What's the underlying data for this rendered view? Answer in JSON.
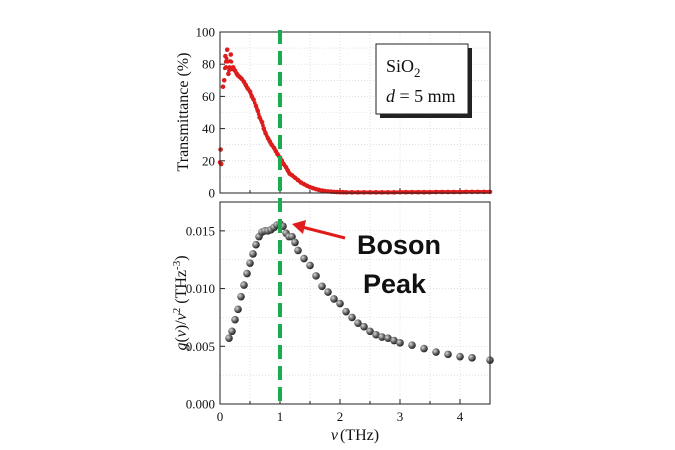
{
  "chart_data": [
    {
      "type": "scatter",
      "panel": "top",
      "ylabel": "Transmittance (%)",
      "ylim": [
        0,
        100
      ],
      "yticks": [
        0,
        20,
        40,
        60,
        80,
        100
      ],
      "xlim": [
        0,
        4.5
      ],
      "grid": true,
      "color": "#dd1c1c",
      "inset_box": {
        "line1_main": "SiO",
        "line1_sub": "2",
        "line2_var": "d",
        "line2_rest": " = 5 mm"
      },
      "series": [
        {
          "x": [
            0.0,
            0.01,
            0.02,
            0.05,
            0.07,
            0.09,
            0.1,
            0.12,
            0.14,
            0.16,
            0.18,
            0.2,
            0.22,
            0.25,
            0.28,
            0.3,
            0.33,
            0.36,
            0.4,
            0.43,
            0.46,
            0.5,
            0.53,
            0.56,
            0.6,
            0.63,
            0.66,
            0.7,
            0.73,
            0.76,
            0.8,
            0.83,
            0.86,
            0.9,
            0.93,
            0.96,
            1.0,
            1.03,
            1.06,
            1.1,
            1.13,
            1.16,
            1.2,
            1.25,
            1.3,
            1.35,
            1.4,
            1.45,
            1.5,
            1.55,
            1.6,
            1.65,
            1.7,
            1.75,
            1.8,
            1.85,
            1.9,
            1.95,
            2.0,
            2.05,
            2.1,
            2.2,
            2.3,
            2.4,
            2.5,
            2.6,
            2.7,
            2.8,
            2.9,
            3.0,
            3.1,
            3.2,
            3.3,
            3.4,
            3.5,
            3.6,
            3.7,
            3.8,
            3.9,
            4.0,
            4.1,
            4.2,
            4.3,
            4.4,
            4.5
          ],
          "y": [
            19,
            27,
            18,
            66,
            70,
            85,
            78,
            89,
            74,
            78,
            86,
            77,
            78,
            76,
            74,
            73,
            72,
            71,
            69,
            67,
            65,
            63,
            60,
            58,
            54,
            51,
            47,
            44,
            40,
            37,
            34,
            32,
            30,
            28,
            26,
            24,
            22,
            20,
            18,
            16,
            14,
            12,
            11,
            9.5,
            8,
            6.5,
            5.5,
            4.5,
            3.6,
            3,
            2.4,
            1.9,
            1.5,
            1.2,
            1,
            0.8,
            0.7,
            0.6,
            0.5,
            0.5,
            0.4,
            0.4,
            0.4,
            0.4,
            0.4,
            0.4,
            0.4,
            0.4,
            0.4,
            0.5,
            0.5,
            0.5,
            0.5,
            0.5,
            0.5,
            0.6,
            0.6,
            0.6,
            0.6,
            0.6,
            0.7,
            0.7,
            0.7,
            0.7,
            0.7
          ]
        }
      ]
    },
    {
      "type": "scatter",
      "panel": "bottom",
      "xlabel_var": "ν",
      "xlabel_unit": "(THz)",
      "ylabel_part1": "g",
      "ylabel_part2": "(",
      "ylabel_part3": "ν",
      "ylabel_part4": ")/",
      "ylabel_part5": "ν",
      "ylabel_part6": "2",
      "ylabel_part7": " (THz",
      "ylabel_part8": "-3",
      "ylabel_part9": ")",
      "xlim": [
        0,
        4.5
      ],
      "xticks": [
        0,
        1,
        2,
        3,
        4
      ],
      "ylim": [
        0,
        0.0175
      ],
      "yticks": [
        "0.000",
        "0.005",
        "0.010",
        "0.015"
      ],
      "ytick_values": [
        0,
        0.005,
        0.01,
        0.015
      ],
      "grid": true,
      "color": "#555555",
      "series": [
        {
          "x": [
            0.15,
            0.2,
            0.25,
            0.3,
            0.35,
            0.4,
            0.45,
            0.5,
            0.55,
            0.6,
            0.65,
            0.7,
            0.75,
            0.8,
            0.85,
            0.9,
            0.95,
            1.0,
            1.05,
            1.1,
            1.15,
            1.2,
            1.25,
            1.3,
            1.4,
            1.5,
            1.6,
            1.7,
            1.8,
            1.9,
            2.0,
            2.1,
            2.2,
            2.3,
            2.4,
            2.5,
            2.6,
            2.7,
            2.8,
            2.9,
            3.0,
            3.2,
            3.4,
            3.6,
            3.8,
            4.0,
            4.2,
            4.5
          ],
          "y": [
            0.0057,
            0.0063,
            0.0073,
            0.0082,
            0.0093,
            0.0103,
            0.0113,
            0.0122,
            0.013,
            0.0138,
            0.0145,
            0.0149,
            0.015,
            0.015,
            0.0151,
            0.0153,
            0.0155,
            0.0156,
            0.0154,
            0.0148,
            0.0145,
            0.0145,
            0.014,
            0.0133,
            0.0126,
            0.012,
            0.0111,
            0.0102,
            0.0097,
            0.0091,
            0.0087,
            0.008,
            0.0075,
            0.007,
            0.0067,
            0.0063,
            0.006,
            0.0058,
            0.0057,
            0.0055,
            0.0053,
            0.0051,
            0.0048,
            0.0045,
            0.0043,
            0.0041,
            0.004,
            0.0038
          ]
        }
      ],
      "annotation": {
        "line1": "Boson",
        "line2": "Peak",
        "x": 1.0,
        "y": 0.0155
      }
    }
  ],
  "vertical_line": {
    "x": 1.0,
    "color": "#1aad4f"
  },
  "xtick_labels": [
    "0",
    "1",
    "2",
    "3",
    "4"
  ]
}
